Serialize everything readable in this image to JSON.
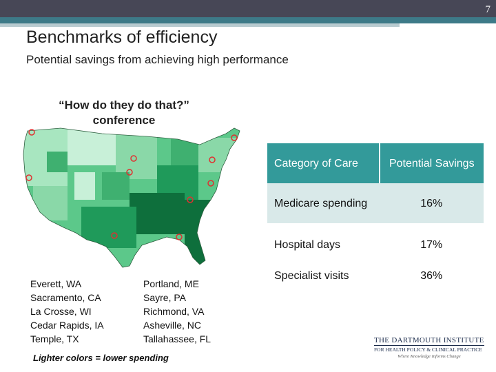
{
  "header": {
    "page_number": "7",
    "title": "Benchmarks of efficiency",
    "subtitle": "Potential savings from achieving high performance"
  },
  "conference": {
    "line1": "“How do they do that?”",
    "line2": "conference"
  },
  "map": {
    "label": "US map of Medicare spending by hospital referral region",
    "colors": {
      "light": "#a8e6c0",
      "mid": "#5cc88a",
      "dark": "#1f9a5a",
      "darkest": "#0e6f3c",
      "highlight": "#e03030"
    }
  },
  "cities": {
    "left": [
      "Everett, WA",
      "Sacramento, CA",
      "La Crosse, WI",
      "Cedar Rapids, IA",
      "Temple, TX"
    ],
    "right": [
      "Portland, ME",
      "Sayre, PA",
      "Richmond, VA",
      "Asheville, NC",
      "Tallahassee, FL"
    ]
  },
  "legend_note": "Lighter colors = lower spending",
  "table": {
    "headers": [
      "Category of Care",
      "Potential Savings"
    ],
    "rows": [
      {
        "category": "Medicare spending",
        "savings": "16%"
      },
      {
        "category": "Hospital days",
        "savings": "17%"
      },
      {
        "category": "Specialist visits",
        "savings": "36%"
      }
    ]
  },
  "logo": {
    "name": "THE DARTMOUTH INSTITUTE",
    "sub": "FOR HEALTH POLICY & CLINICAL PRACTICE",
    "tagline": "Where Knowledge Informs Change"
  },
  "colors": {
    "topbar": "#474756",
    "accent": "#3d7a88",
    "table_header": "#339a9a",
    "table_row_shade": "#d9e9e9"
  }
}
